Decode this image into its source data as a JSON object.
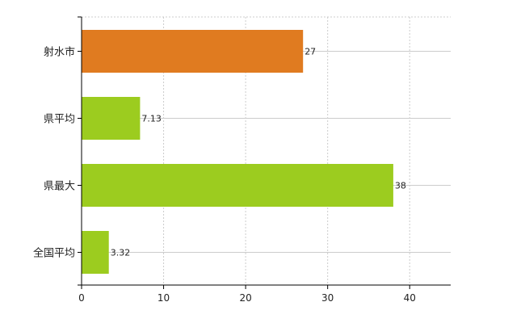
{
  "chart_data": {
    "type": "bar",
    "orientation": "horizontal",
    "categories": [
      "射水市",
      "県平均",
      "県最大",
      "全国平均"
    ],
    "values": [
      27,
      7.13,
      38,
      3.32
    ],
    "value_labels": [
      "27",
      "7.13",
      "38",
      "3.32"
    ],
    "bar_colors": [
      "#e07b20",
      "#9ccc1f",
      "#9ccc1f",
      "#9ccc1f"
    ],
    "xlim": [
      0,
      45
    ],
    "x_ticks": [
      "0",
      "10",
      "20",
      "30",
      "40"
    ],
    "title": "",
    "xlabel": "",
    "ylabel": "",
    "grid": true,
    "legend": "none"
  }
}
